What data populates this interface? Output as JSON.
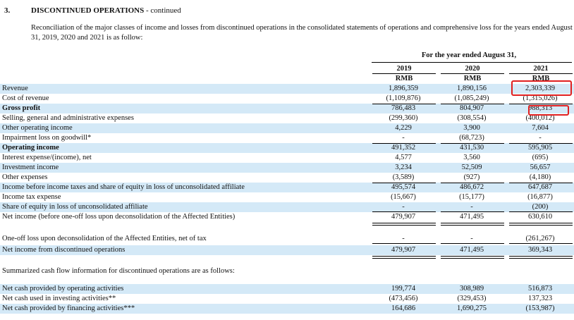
{
  "section": {
    "number": "3.",
    "title": "DISCONTINUED OPERATIONS",
    "title_suffix": " - continued",
    "intro": "Reconciliation of the major classes of income and losses from discontinued operations in the consolidated statements of operations and comprehensive loss for the years ended August 31, 2019, 2020 and 2021 is as follow:"
  },
  "header": {
    "period": "For the year ended August 31,",
    "years": [
      "2019",
      "2020",
      "2021"
    ],
    "units": [
      "RMB",
      "RMB",
      "RMB"
    ]
  },
  "rows": [
    {
      "label": "Revenue",
      "values": [
        "1,896,359",
        "1,890,156",
        "2,303,339"
      ]
    },
    {
      "label": "Cost of revenue",
      "values": [
        "(1,109,876)",
        "(1,085,249)",
        "(1,315,026)"
      ]
    },
    {
      "label": "Gross profit",
      "values": [
        "786,483",
        "804,907",
        "988,313"
      ]
    },
    {
      "label": "Selling, general and administrative expenses",
      "values": [
        "(299,360)",
        "(308,554)",
        "(400,012)"
      ]
    },
    {
      "label": "Other operating income",
      "values": [
        "4,229",
        "3,900",
        "7,604"
      ]
    },
    {
      "label": "Impairment loss on goodwill*",
      "values": [
        "-",
        "(68,723)",
        "-"
      ]
    },
    {
      "label": "Operating income",
      "values": [
        "491,352",
        "431,530",
        "595,905"
      ]
    },
    {
      "label": "Interest expense/(income), net",
      "values": [
        "4,577",
        "3,560",
        "(695)"
      ]
    },
    {
      "label": "Investment income",
      "values": [
        "3,234",
        "52,509",
        "56,657"
      ]
    },
    {
      "label": "Other expenses",
      "values": [
        "(3,589)",
        "(927)",
        "(4,180)"
      ]
    },
    {
      "label": "Income before income taxes and share of equity in loss of unconsolidated affiliate",
      "values": [
        "495,574",
        "486,672",
        "647,687"
      ]
    },
    {
      "label": "Income tax expense",
      "values": [
        "(15,667)",
        "(15,177)",
        "(16,877)"
      ]
    },
    {
      "label": "Share of equity in loss of unconsolidated affiliate",
      "values": [
        "-",
        "-",
        "(200)"
      ]
    },
    {
      "label": "Net income (before one-off loss upon deconsolidation of the Affected Entities)",
      "values": [
        "479,907",
        "471,495",
        "630,610"
      ]
    }
  ],
  "rows2": [
    {
      "label": "One-off loss upon deconsolidation of the Affected Entities, net of tax",
      "values": [
        "-",
        "-",
        "(261,267)"
      ]
    },
    {
      "label": "Net income from discontinued operations",
      "values": [
        "479,907",
        "471,495",
        "369,343"
      ]
    }
  ],
  "cashflow": {
    "intro": "Summarized cash flow information for discontinued operations are as follows:",
    "rows": [
      {
        "label": "Net cash provided by operating activities",
        "values": [
          "199,774",
          "308,989",
          "516,873"
        ]
      },
      {
        "label": "Net cash used in investing activities**",
        "values": [
          "(473,456)",
          "(329,453)",
          "137,323"
        ]
      },
      {
        "label": "Net cash provided by financing activities***",
        "values": [
          "164,686",
          "1,690,275",
          "(153,987)"
        ]
      }
    ]
  },
  "highlight_color": "#e02020",
  "row_shade_color": "#d4e9f7"
}
